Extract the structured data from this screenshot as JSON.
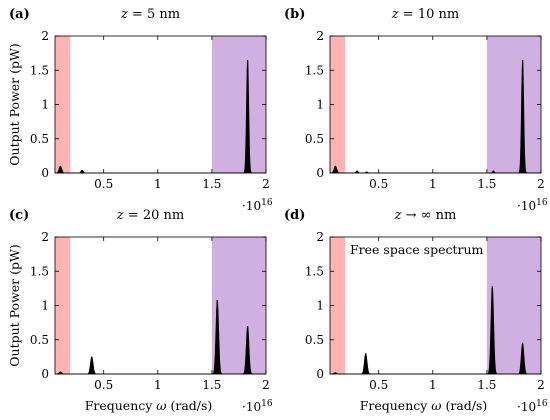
{
  "chart_data": [
    {
      "type": "area",
      "panel": "(a)",
      "title": "z = 5 nm",
      "xlabel": "",
      "ylabel": "Output Power (pW)",
      "x_multiplier": "·10^16",
      "xlim": [
        0.05,
        2.0
      ],
      "ylim": [
        0,
        2
      ],
      "x_ticks": [
        0.5,
        1,
        1.5,
        2
      ],
      "x_tick_labels": [
        "0.5",
        "1",
        "1.5",
        "2"
      ],
      "y_ticks": [
        0,
        0.5,
        1,
        1.5,
        2
      ],
      "y_tick_labels": [
        "0",
        "0.5",
        "1",
        "1.5",
        "2"
      ],
      "shaded_regions": [
        {
          "x0": 0.05,
          "x1": 0.19,
          "color": "#ffb3b3"
        },
        {
          "x0": 1.5,
          "x1": 2.0,
          "color": "#d0b0e0"
        }
      ],
      "peaks": [
        {
          "x": 0.1,
          "y": 0.1,
          "width": 0.012
        },
        {
          "x": 0.3,
          "y": 0.04,
          "width": 0.01
        },
        {
          "x": 1.83,
          "y": 1.65,
          "width": 0.01
        }
      ],
      "annotation": ""
    },
    {
      "type": "area",
      "panel": "(b)",
      "title": "z = 10 nm",
      "xlabel": "",
      "ylabel": "",
      "x_multiplier": "·10^16",
      "xlim": [
        0.05,
        2.0
      ],
      "ylim": [
        0,
        2
      ],
      "x_ticks": [
        0.5,
        1,
        1.5,
        2
      ],
      "x_tick_labels": [
        "0.5",
        "1",
        "1.5",
        "2"
      ],
      "y_ticks": [
        0,
        0.5,
        1,
        1.5,
        2
      ],
      "y_tick_labels": [
        "0",
        "0.5",
        "1",
        "1.5",
        "2"
      ],
      "shaded_regions": [
        {
          "x0": 0.05,
          "x1": 0.19,
          "color": "#ffb3b3"
        },
        {
          "x0": 1.5,
          "x1": 2.0,
          "color": "#d0b0e0"
        }
      ],
      "peaks": [
        {
          "x": 0.1,
          "y": 0.1,
          "width": 0.012
        },
        {
          "x": 0.3,
          "y": 0.03,
          "width": 0.01
        },
        {
          "x": 0.39,
          "y": 0.015,
          "width": 0.01
        },
        {
          "x": 1.56,
          "y": 0.03,
          "width": 0.008
        },
        {
          "x": 1.83,
          "y": 1.65,
          "width": 0.01
        }
      ],
      "annotation": ""
    },
    {
      "type": "area",
      "panel": "(c)",
      "title": "z = 20 nm",
      "xlabel": "Frequency ω (rad/s)",
      "ylabel": "Output Power (pW)",
      "x_multiplier": "·10^16",
      "xlim": [
        0.05,
        2.0
      ],
      "ylim": [
        0,
        2
      ],
      "x_ticks": [
        0.5,
        1,
        1.5,
        2
      ],
      "x_tick_labels": [
        "0.5",
        "1",
        "1.5",
        "2"
      ],
      "y_ticks": [
        0,
        0.5,
        1,
        1.5,
        2
      ],
      "y_tick_labels": [
        "0",
        "0.5",
        "1",
        "1.5",
        "2"
      ],
      "shaded_regions": [
        {
          "x0": 0.05,
          "x1": 0.19,
          "color": "#ffb3b3"
        },
        {
          "x0": 1.5,
          "x1": 2.0,
          "color": "#d0b0e0"
        }
      ],
      "peaks": [
        {
          "x": 0.1,
          "y": 0.03,
          "width": 0.012
        },
        {
          "x": 0.39,
          "y": 0.25,
          "width": 0.012
        },
        {
          "x": 1.55,
          "y": 1.08,
          "width": 0.012
        },
        {
          "x": 1.83,
          "y": 0.7,
          "width": 0.012
        }
      ],
      "annotation": ""
    },
    {
      "type": "area",
      "panel": "(d)",
      "title": "z → ∞ nm",
      "xlabel": "Frequency ω (rad/s)",
      "ylabel": "",
      "x_multiplier": "·10^16",
      "xlim": [
        0.05,
        2.0
      ],
      "ylim": [
        0,
        2
      ],
      "x_ticks": [
        0.5,
        1,
        1.5,
        2
      ],
      "x_tick_labels": [
        "0.5",
        "1",
        "1.5",
        "2"
      ],
      "y_ticks": [
        0,
        0.5,
        1,
        1.5,
        2
      ],
      "y_tick_labels": [
        "0",
        "0.5",
        "1",
        "1.5",
        "2"
      ],
      "shaded_regions": [
        {
          "x0": 0.05,
          "x1": 0.19,
          "color": "#ffb3b3"
        },
        {
          "x0": 1.5,
          "x1": 2.0,
          "color": "#d0b0e0"
        }
      ],
      "peaks": [
        {
          "x": 0.1,
          "y": 0.02,
          "width": 0.012
        },
        {
          "x": 0.38,
          "y": 0.3,
          "width": 0.012
        },
        {
          "x": 1.55,
          "y": 1.28,
          "width": 0.012
        },
        {
          "x": 1.83,
          "y": 0.45,
          "width": 0.012
        }
      ],
      "annotation": "Free space spectrum"
    }
  ]
}
